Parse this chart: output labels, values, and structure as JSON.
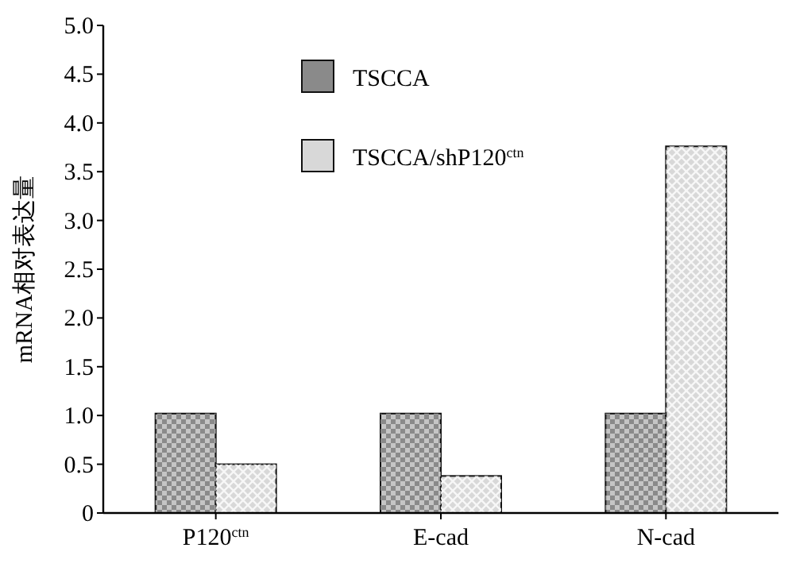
{
  "chart_data": {
    "type": "bar",
    "ylabel": "mRNA相对表达量",
    "categories": [
      "P120$^{ctn}$",
      "E-cad",
      "N-cad"
    ],
    "series": [
      {
        "name": "TSCCA",
        "color": "#8a8a8a",
        "values": [
          1.02,
          1.02,
          1.02
        ]
      },
      {
        "name": "TSCCA/shP120$^{ctn}$",
        "color": "#d8d8d8",
        "values": [
          0.5,
          0.38,
          3.76
        ]
      }
    ],
    "ylim": [
      0,
      5
    ],
    "yticks": [
      0,
      {
        "value": 0.5,
        "label": "0.5"
      },
      {
        "value": 1,
        "label": "1.0"
      },
      {
        "value": 1.5,
        "label": "1.5"
      },
      {
        "value": 2,
        "label": "2.0"
      },
      {
        "value": 2.5,
        "label": "2.5"
      },
      {
        "value": 3,
        "label": "3.0"
      },
      {
        "value": 3.5,
        "label": "3.5"
      },
      {
        "value": 4,
        "label": "4.0"
      },
      {
        "value": 4.5,
        "label": "4.5"
      },
      {
        "value": 5,
        "label": "5.0"
      }
    ],
    "grid": false,
    "legend": "top"
  }
}
